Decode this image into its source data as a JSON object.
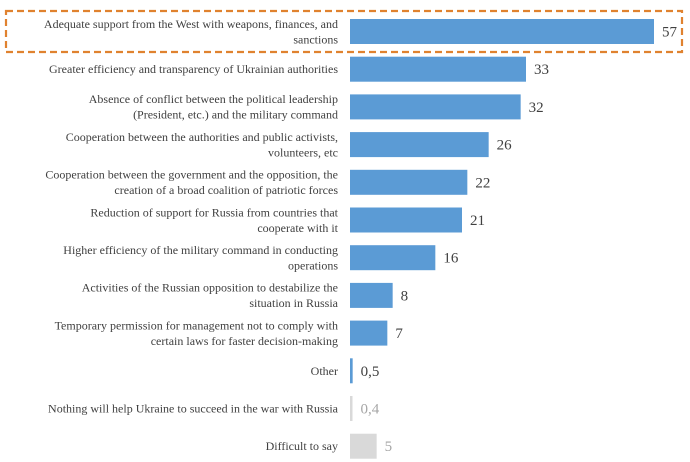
{
  "chart_data": {
    "type": "bar",
    "orientation": "horizontal",
    "title": "",
    "xlabel": "",
    "ylabel": "",
    "xlim": [
      0,
      57
    ],
    "grid": false,
    "legend": "none",
    "categories": [
      [
        "Adequate support from the West with weapons, finances, and",
        "sanctions"
      ],
      [
        "Greater efficiency and transparency of Ukrainian authorities"
      ],
      [
        "Absence of conflict between the political leadership",
        "(President, etc.) and the military command"
      ],
      [
        "Cooperation between the authorities and public activists,",
        "volunteers, etc"
      ],
      [
        "Cooperation between the government and the opposition, the",
        "creation of a broad coalition of patriotic forces"
      ],
      [
        "Reduction of support for Russia from countries that",
        "cooperate with it"
      ],
      [
        "Higher efficiency of the military command in conducting",
        "operations"
      ],
      [
        "Activities of the Russian opposition to destabilize the",
        "situation in Russia"
      ],
      [
        "Temporary permission for management not to comply with",
        "certain laws for faster decision-making"
      ],
      [
        "Other"
      ],
      [
        "Nothing will help Ukraine to succeed in the war with Russia"
      ],
      [
        "Difficult to say"
      ]
    ],
    "values": [
      57,
      33,
      32,
      26,
      22,
      21,
      16,
      8,
      7,
      0.5,
      0.4,
      5
    ],
    "value_labels": [
      "57",
      "33",
      "32",
      "26",
      "22",
      "21",
      "16",
      "8",
      "7",
      "0,5",
      "0,4",
      "5"
    ],
    "bar_colors": [
      "#5b9bd5",
      "#5b9bd5",
      "#5b9bd5",
      "#5b9bd5",
      "#5b9bd5",
      "#5b9bd5",
      "#5b9bd5",
      "#5b9bd5",
      "#5b9bd5",
      "#5b9bd5",
      "#d9d9d9",
      "#d9d9d9"
    ],
    "value_label_colors": [
      "#404040",
      "#404040",
      "#404040",
      "#404040",
      "#404040",
      "#404040",
      "#404040",
      "#404040",
      "#404040",
      "#404040",
      "#a6a6a6",
      "#a6a6a6"
    ],
    "highlighted_category_index": 0,
    "highlight_color": "#e0822f"
  }
}
